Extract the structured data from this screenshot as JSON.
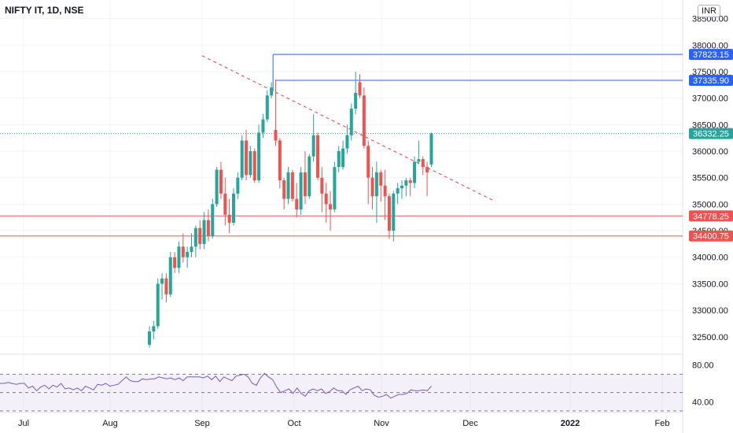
{
  "header": {
    "title": "NIFTY IT, 1D, NSE",
    "currency": "INR"
  },
  "chart_data": [
    {
      "type": "candlestick",
      "ylim": [
        32200,
        38850
      ],
      "x_labels": [
        "Jul",
        "Aug",
        "Sep",
        "Oct",
        "Nov",
        "Dec",
        "2022",
        "Feb"
      ],
      "y_ticks": [
        "32500.00",
        "33000.00",
        "33500.00",
        "34000.00",
        "34500.00",
        "35000.00",
        "35500.00",
        "36000.00",
        "36500.00",
        "37000.00",
        "37500.00",
        "38000.00",
        "38500.00"
      ],
      "price_labels": [
        {
          "text": "37823.15",
          "value": 37823.15,
          "color": "#2962ff"
        },
        {
          "text": "37335.90",
          "value": 37335.9,
          "color": "#2962ff"
        },
        {
          "text": "36332.25",
          "value": 36332.25,
          "color": "#26a69a"
        },
        {
          "text": "34778.25",
          "value": 34778.25,
          "color": "#ef5350"
        },
        {
          "text": "34400.75",
          "value": 34400.75,
          "color": "#ef5350"
        }
      ],
      "candles": [
        [
          32350,
          32700,
          32300,
          32600
        ],
        [
          32600,
          32800,
          32450,
          32700
        ],
        [
          32700,
          33600,
          32650,
          33500
        ],
        [
          33500,
          33700,
          33200,
          33600
        ],
        [
          33600,
          33700,
          33150,
          33300
        ],
        [
          33300,
          34100,
          33250,
          34000
        ],
        [
          34000,
          34100,
          33700,
          33800
        ],
        [
          33800,
          34300,
          33700,
          34200
        ],
        [
          34200,
          34450,
          33900,
          34000
        ],
        [
          34000,
          34200,
          33800,
          34100
        ],
        [
          34100,
          34450,
          34000,
          34200
        ],
        [
          34200,
          34600,
          34000,
          34550
        ],
        [
          34550,
          34700,
          34150,
          34250
        ],
        [
          34250,
          34850,
          34150,
          34700
        ],
        [
          34700,
          34900,
          34300,
          34400
        ],
        [
          34400,
          35100,
          34350,
          35000
        ],
        [
          35000,
          35700,
          34950,
          35650
        ],
        [
          35650,
          35800,
          35100,
          35200
        ],
        [
          35200,
          35500,
          34600,
          34800
        ],
        [
          34800,
          35100,
          34450,
          34650
        ],
        [
          34650,
          35300,
          34600,
          35200
        ],
        [
          35200,
          35600,
          35100,
          35500
        ],
        [
          35500,
          36300,
          35450,
          36200
        ],
        [
          36200,
          36400,
          35450,
          35550
        ],
        [
          35550,
          36100,
          35500,
          36000
        ],
        [
          36000,
          36050,
          35400,
          35450
        ],
        [
          35450,
          36500,
          35400,
          36350
        ],
        [
          36350,
          36700,
          36250,
          36600
        ],
        [
          36600,
          37150,
          36550,
          37050
        ],
        [
          37050,
          37300,
          37000,
          37200
        ],
        [
          36400,
          37350,
          36100,
          36200
        ],
        [
          36200,
          36250,
          35300,
          35450
        ],
        [
          35450,
          35500,
          34900,
          35100
        ],
        [
          35100,
          35700,
          35000,
          35600
        ],
        [
          35600,
          35650,
          35050,
          35100
        ],
        [
          35100,
          35400,
          34750,
          34900
        ],
        [
          34900,
          35700,
          34800,
          35600
        ],
        [
          35600,
          36000,
          35000,
          35150
        ],
        [
          35150,
          35950,
          35100,
          35900
        ],
        [
          35900,
          36700,
          35800,
          36300
        ],
        [
          36300,
          36350,
          35450,
          35500
        ],
        [
          35500,
          35700,
          34850,
          35200
        ],
        [
          35200,
          35400,
          34650,
          35000
        ],
        [
          35000,
          35250,
          34500,
          34900
        ],
        [
          34900,
          35800,
          34850,
          35700
        ],
        [
          35700,
          36100,
          35600,
          36000
        ],
        [
          35700,
          36200,
          35650,
          36050
        ],
        [
          36050,
          36500,
          35950,
          36300
        ],
        [
          36300,
          36900,
          36200,
          36800
        ],
        [
          36800,
          37500,
          36700,
          37100
        ],
        [
          37300,
          37450,
          37000,
          37050
        ],
        [
          37050,
          37200,
          36050,
          36100
        ],
        [
          36100,
          36200,
          35000,
          35500
        ],
        [
          35500,
          35700,
          34900,
          35150
        ],
        [
          35150,
          35800,
          34650,
          35600
        ],
        [
          35600,
          35650,
          35050,
          35350
        ],
        [
          35350,
          35650,
          34700,
          35150
        ],
        [
          35150,
          35200,
          34350,
          34500
        ],
        [
          34500,
          35250,
          34300,
          35200
        ],
        [
          35200,
          35400,
          35000,
          35300
        ],
        [
          35300,
          35450,
          35100,
          35350
        ],
        [
          35350,
          35500,
          35150,
          35450
        ],
        [
          35450,
          35500,
          35150,
          35400
        ],
        [
          35400,
          35900,
          35300,
          35800
        ],
        [
          35800,
          36200,
          35750,
          35850
        ],
        [
          35850,
          35900,
          35550,
          35700
        ],
        [
          35700,
          35800,
          35150,
          35600
        ],
        [
          35750,
          36350,
          35700,
          36332.25
        ]
      ],
      "rsi": {
        "ylim": [
          30,
          90
        ],
        "ticks": [
          "80.00",
          "40.00"
        ],
        "values": [
          60,
          60,
          61,
          60,
          59,
          60,
          60,
          55,
          57,
          52,
          56,
          58,
          54,
          58,
          56,
          60,
          54,
          55,
          53,
          55,
          52,
          57,
          55,
          53,
          59,
          58,
          60,
          57,
          58,
          59,
          63,
          67,
          63,
          62,
          62,
          65,
          64,
          65,
          65,
          67,
          66,
          65,
          66,
          64,
          66,
          63,
          67,
          67,
          67,
          67,
          66,
          68,
          64,
          68,
          62,
          67,
          65,
          63,
          68,
          69,
          70,
          67,
          60,
          58,
          66,
          71,
          67,
          64,
          56,
          50,
          52,
          54,
          49,
          55,
          49,
          46,
          52,
          54,
          52,
          54,
          49,
          51,
          55,
          52,
          52,
          48,
          53,
          55,
          57,
          52,
          54,
          53,
          47,
          45,
          46,
          48,
          44,
          46,
          48,
          48,
          49,
          53,
          52,
          52,
          53,
          52,
          57
        ]
      }
    }
  ]
}
